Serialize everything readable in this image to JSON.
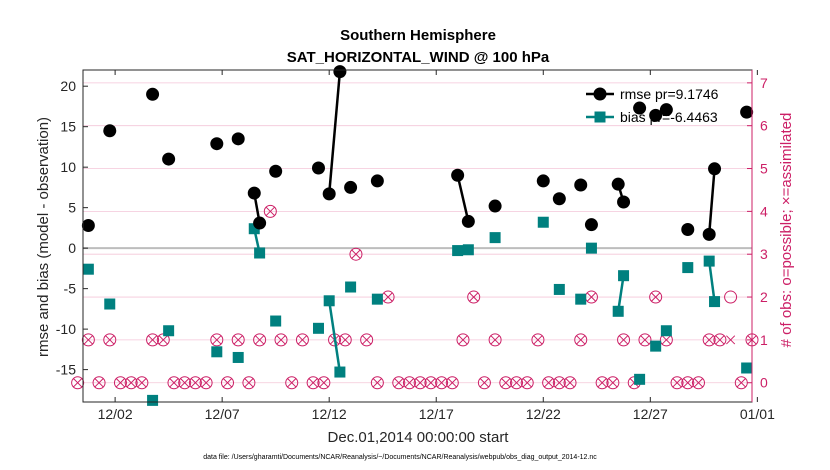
{
  "chart_data": {
    "type": "line",
    "title": [
      "Southern Hemisphere",
      "SAT_HORIZONTAL_WIND @ 100 hPa"
    ],
    "xlabel": "Dec.01,2014 00:00:00 start",
    "ylabel": "rmse and bias (model - observation)",
    "ylabel_right": "# of obs: o=possible; ×=assimilated",
    "footnote": "data file: /Users/gharamti/Documents/NCAR/Reanalysis/~/Documents/NCAR/Reanalysis/webpub/obs_diag_output_2014-12.nc",
    "xlim": [
      0.5,
      31.75
    ],
    "ylim": [
      -19,
      22
    ],
    "ylim_right": [
      -0.45,
      7.3
    ],
    "xticks": [
      {
        "x": 2,
        "label": "12/02"
      },
      {
        "x": 7,
        "label": "12/07"
      },
      {
        "x": 12,
        "label": "12/12"
      },
      {
        "x": 17,
        "label": "12/17"
      },
      {
        "x": 22,
        "label": "12/22"
      },
      {
        "x": 27,
        "label": "12/27"
      },
      {
        "x": 32,
        "label": "01/01"
      }
    ],
    "yticks": [
      20,
      15,
      10,
      5,
      0,
      -5,
      -10,
      -15
    ],
    "yticks_right": [
      7,
      6,
      5,
      4,
      3,
      2,
      1,
      0
    ],
    "legend": {
      "position": "top-right",
      "entries": [
        "rmse pr=9.1746",
        "bias pr=-6.4463"
      ]
    },
    "series": [
      {
        "name": "rmse",
        "color": "#000000",
        "segments": [
          [
            [
              0.75,
              2.8
            ]
          ],
          [
            [
              1.75,
              14.5
            ]
          ],
          [
            [
              3.75,
              19.0
            ]
          ],
          [
            [
              4.5,
              11.0
            ]
          ],
          [
            [
              6.75,
              12.9
            ]
          ],
          [
            [
              7.75,
              13.5
            ]
          ],
          [
            [
              8.5,
              6.8
            ],
            [
              8.75,
              3.1
            ]
          ],
          [
            [
              9.5,
              9.5
            ]
          ],
          [
            [
              11.5,
              9.9
            ]
          ],
          [
            [
              12.0,
              6.7
            ],
            [
              12.5,
              21.8
            ]
          ],
          [
            [
              13.0,
              7.5
            ]
          ],
          [
            [
              14.25,
              8.3
            ]
          ],
          [
            [
              18.0,
              9.0
            ],
            [
              18.5,
              3.3
            ]
          ],
          [
            [
              19.75,
              5.2
            ]
          ],
          [
            [
              22.0,
              8.3
            ]
          ],
          [
            [
              22.75,
              6.1
            ]
          ],
          [
            [
              23.75,
              7.8
            ]
          ],
          [
            [
              24.25,
              2.9
            ]
          ],
          [
            [
              25.5,
              7.9
            ],
            [
              25.75,
              5.7
            ]
          ],
          [
            [
              26.5,
              17.3
            ]
          ],
          [
            [
              27.25,
              16.4
            ]
          ],
          [
            [
              27.75,
              17.1
            ]
          ],
          [
            [
              28.75,
              2.3
            ]
          ],
          [
            [
              29.75,
              1.7
            ],
            [
              30.0,
              9.8
            ]
          ],
          [
            [
              31.5,
              16.8
            ]
          ]
        ]
      },
      {
        "name": "bias",
        "color": "#00807f",
        "segments": [
          [
            [
              0.75,
              -2.6
            ]
          ],
          [
            [
              1.75,
              -6.9
            ]
          ],
          [
            [
              3.75,
              -18.8
            ]
          ],
          [
            [
              4.5,
              -10.2
            ]
          ],
          [
            [
              6.75,
              -12.8
            ]
          ],
          [
            [
              7.75,
              -13.5
            ]
          ],
          [
            [
              8.5,
              2.4
            ],
            [
              8.75,
              -0.6
            ]
          ],
          [
            [
              9.5,
              -9.0
            ]
          ],
          [
            [
              11.5,
              -9.9
            ]
          ],
          [
            [
              12.0,
              -6.5
            ],
            [
              12.5,
              -15.3
            ]
          ],
          [
            [
              13.0,
              -4.8
            ]
          ],
          [
            [
              14.25,
              -6.3
            ]
          ],
          [
            [
              18.0,
              -0.3
            ],
            [
              18.5,
              -0.2
            ]
          ],
          [
            [
              19.75,
              1.3
            ]
          ],
          [
            [
              22.0,
              3.2
            ]
          ],
          [
            [
              22.75,
              -5.1
            ]
          ],
          [
            [
              23.75,
              -6.3
            ]
          ],
          [
            [
              24.25,
              0.0
            ]
          ],
          [
            [
              25.5,
              -7.8
            ],
            [
              25.75,
              -3.4
            ]
          ],
          [
            [
              26.5,
              -16.2
            ]
          ],
          [
            [
              27.25,
              -12.1
            ]
          ],
          [
            [
              27.75,
              -10.2
            ]
          ],
          [
            [
              28.75,
              -2.4
            ]
          ],
          [
            [
              29.75,
              -1.6
            ],
            [
              30.0,
              -6.6
            ]
          ],
          [
            [
              31.5,
              -14.8
            ]
          ]
        ]
      }
    ],
    "obs_counts": {
      "color": "#cc1f66",
      "times": [
        0.25,
        0.75,
        1.25,
        1.75,
        2.25,
        2.75,
        3.25,
        3.75,
        4.25,
        4.75,
        5.25,
        5.75,
        6.25,
        6.75,
        7.25,
        7.75,
        8.25,
        8.75,
        9.25,
        9.75,
        10.25,
        10.75,
        11.25,
        11.75,
        12.25,
        12.75,
        13.25,
        13.75,
        14.25,
        14.75,
        15.25,
        15.75,
        16.25,
        16.75,
        17.25,
        17.75,
        18.25,
        18.75,
        19.25,
        19.75,
        20.25,
        20.75,
        21.25,
        21.75,
        22.25,
        22.75,
        23.25,
        23.75,
        24.25,
        24.75,
        25.25,
        25.75,
        26.25,
        26.75,
        27.25,
        27.75,
        28.25,
        28.75,
        29.25,
        29.75,
        30.25,
        30.75,
        31.25,
        31.75
      ],
      "possible": [
        0,
        1,
        0,
        1,
        0,
        0,
        0,
        1,
        1,
        0,
        0,
        0,
        0,
        1,
        0,
        1,
        0,
        1,
        4,
        1,
        0,
        1,
        0,
        0,
        1,
        1,
        3,
        1,
        0,
        2,
        0,
        0,
        0,
        0,
        0,
        0,
        1,
        2,
        0,
        1,
        0,
        0,
        0,
        1,
        0,
        0,
        0,
        1,
        2,
        0,
        0,
        1,
        0,
        1,
        2,
        1,
        0,
        0,
        0,
        1,
        1,
        2,
        0,
        1
      ],
      "assimilated": [
        0,
        1,
        0,
        1,
        0,
        0,
        0,
        1,
        1,
        0,
        0,
        0,
        0,
        1,
        0,
        1,
        0,
        1,
        4,
        1,
        0,
        1,
        0,
        0,
        1,
        1,
        3,
        1,
        0,
        2,
        0,
        0,
        0,
        0,
        0,
        0,
        1,
        2,
        0,
        1,
        0,
        0,
        0,
        1,
        0,
        0,
        0,
        1,
        2,
        0,
        0,
        1,
        0,
        1,
        2,
        1,
        0,
        0,
        0,
        1,
        1,
        1,
        0,
        1
      ]
    }
  }
}
